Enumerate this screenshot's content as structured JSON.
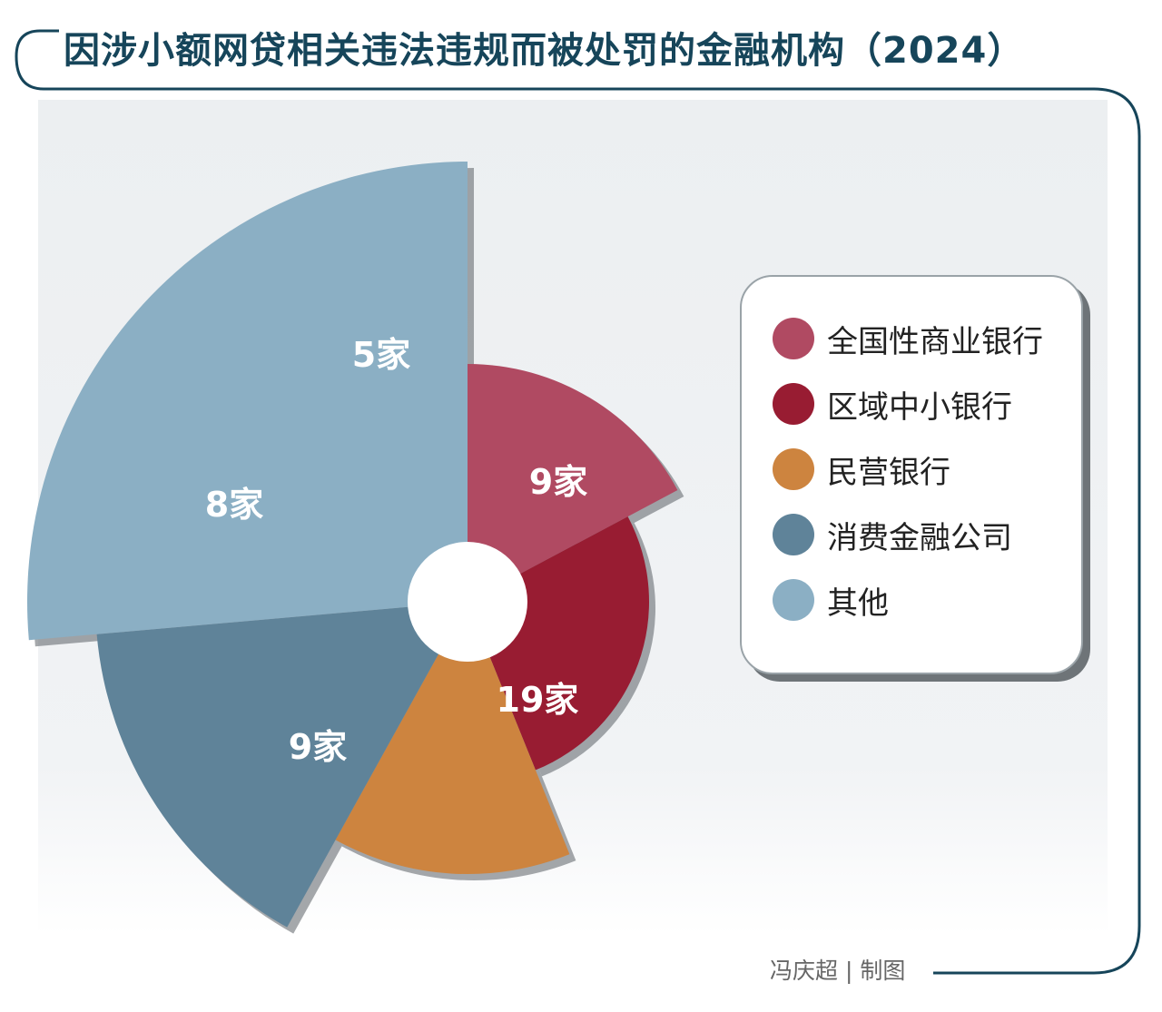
{
  "title": "因涉小额网贷相关违法违规而被处罚的金融机构（2024）",
  "credit": "冯庆超 | 制图",
  "chart_data": {
    "type": "pie",
    "variant": "nightingale-rose",
    "title": "因涉小额网贷相关违法违规而被处罚的金融机构（2024）",
    "unit": "家",
    "legend_position": "right",
    "categories": [
      "全国性商业银行",
      "区域中小银行",
      "民营银行",
      "消费金融公司",
      "其他"
    ],
    "values": [
      9,
      19,
      9,
      8,
      5
    ],
    "labels": [
      "9家",
      "19家",
      "9家",
      "8家",
      "5家"
    ],
    "colors": [
      "#b04a62",
      "#981c32",
      "#cd843f",
      "#5f8399",
      "#8bafc4"
    ]
  },
  "legend": {
    "items": [
      {
        "label": "全国性商业银行",
        "color": "#b04a62"
      },
      {
        "label": "区域中小银行",
        "color": "#981c32"
      },
      {
        "label": "民营银行",
        "color": "#cd843f"
      },
      {
        "label": "消费金融公司",
        "color": "#5f8399"
      },
      {
        "label": "其他",
        "color": "#8bafc4"
      }
    ]
  }
}
